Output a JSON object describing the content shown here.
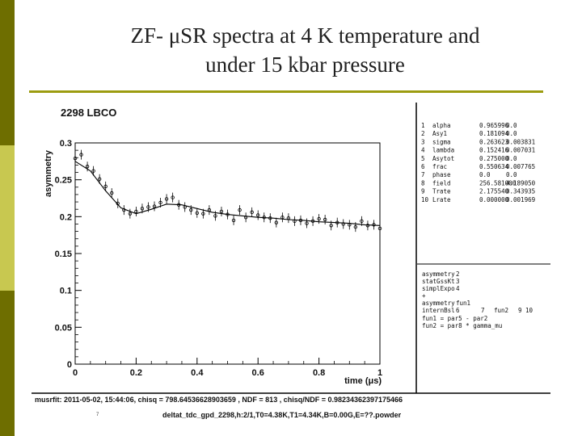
{
  "slide": {
    "title_line1": "ZF- μSR spectra at 4 K temperature and",
    "title_line2": "under 15 kbar pressure",
    "slide_number": "7",
    "colors": {
      "dark": "#6e6e00",
      "light": "#c8c850",
      "rule": "#9c9c10"
    }
  },
  "panel": {
    "run_title": "2298 LBCO",
    "params": [
      [
        "1",
        "alpha",
        "0.965996",
        "0.0"
      ],
      [
        "2",
        "Asy1",
        "0.181094",
        "0.0"
      ],
      [
        "3",
        "sigma",
        "0.263623",
        "0.003831"
      ],
      [
        "4",
        "lambda",
        "0.152416",
        "0.007031"
      ],
      [
        "5",
        "Asytot",
        "0.275000",
        "0.0"
      ],
      [
        "6",
        "frac",
        "0.550634",
        "0.007765"
      ],
      [
        "7",
        "phase",
        "0.0",
        "0.0"
      ],
      [
        "8",
        "field",
        "256.581000",
        "4.189050"
      ],
      [
        "9",
        "Trate",
        "2.175540",
        "0.343935"
      ],
      [
        "10",
        "Lrate",
        "0.000000",
        "0.001969"
      ]
    ],
    "theory": [
      [
        "asymmetry",
        "2",
        "",
        "",
        ""
      ],
      [
        "statGssKt",
        "3",
        "",
        "",
        ""
      ],
      [
        "simplExpo",
        "4",
        "",
        "",
        ""
      ],
      [
        "+",
        "",
        "",
        "",
        ""
      ],
      [
        "asymmetry",
        "fun1",
        "",
        "",
        ""
      ],
      [
        "internBsl",
        "6",
        "7",
        "fun2",
        "9     10"
      ]
    ],
    "functions": [
      "fun1 = par5 - par2",
      "fun2 = par8 * gamma_mu"
    ],
    "footer_line1": "musrfit: 2011-05-02, 15:44:06, chisq = 798.64536628903659 , NDF = 813 , chisq/NDF = 0.98234362397175466",
    "footer_line2": "deltat_tdc_gpd_2298,h:2/1,T0=4.38K,T1=4.34K,B=0.00G,E=??.powder"
  },
  "chart_data": {
    "type": "scatter",
    "title": "2298 LBCO",
    "xlabel": "time (μs)",
    "ylabel": "asymmetry",
    "xlim": [
      0,
      1.0
    ],
    "ylim": [
      0,
      0.3
    ],
    "x_ticks": [
      "0",
      "0.2",
      "0.4",
      "0.6",
      "0.8",
      "1"
    ],
    "y_ticks": [
      "0",
      "0.05",
      "0.1",
      "0.15",
      "0.2",
      "0.25",
      "0.3"
    ],
    "colors": {
      "data": "#000000",
      "fit": "#000000"
    },
    "series": [
      {
        "kind": "data",
        "x": [
          0.0,
          0.02,
          0.04,
          0.06,
          0.08,
          0.1,
          0.12,
          0.14,
          0.16,
          0.18,
          0.2,
          0.22,
          0.24,
          0.26,
          0.28,
          0.3,
          0.32,
          0.34,
          0.36,
          0.38,
          0.4,
          0.42,
          0.44,
          0.46,
          0.48,
          0.5,
          0.52,
          0.54,
          0.56,
          0.58,
          0.6,
          0.62,
          0.64,
          0.66,
          0.68,
          0.7,
          0.72,
          0.74,
          0.76,
          0.78,
          0.8,
          0.82,
          0.84,
          0.86,
          0.88,
          0.9,
          0.92,
          0.94,
          0.96,
          0.98,
          1.0
        ],
        "y": [
          0.279,
          0.284,
          0.268,
          0.262,
          0.251,
          0.241,
          0.232,
          0.218,
          0.209,
          0.204,
          0.207,
          0.211,
          0.213,
          0.214,
          0.219,
          0.224,
          0.226,
          0.216,
          0.213,
          0.209,
          0.205,
          0.204,
          0.209,
          0.201,
          0.207,
          0.203,
          0.195,
          0.209,
          0.199,
          0.206,
          0.202,
          0.199,
          0.198,
          0.192,
          0.199,
          0.198,
          0.194,
          0.195,
          0.191,
          0.194,
          0.197,
          0.196,
          0.188,
          0.192,
          0.19,
          0.189,
          0.186,
          0.194,
          0.188,
          0.189,
          0.184
        ]
      },
      {
        "kind": "fit",
        "x": [
          0.0,
          0.05,
          0.1,
          0.15,
          0.2,
          0.25,
          0.3,
          0.35,
          0.4,
          0.45,
          0.5,
          0.55,
          0.6,
          0.65,
          0.7,
          0.75,
          0.8,
          0.85,
          0.9,
          0.95,
          1.0
        ],
        "y": [
          0.275,
          0.262,
          0.235,
          0.212,
          0.204,
          0.21,
          0.217,
          0.216,
          0.211,
          0.206,
          0.203,
          0.201,
          0.199,
          0.198,
          0.196,
          0.195,
          0.193,
          0.192,
          0.191,
          0.189,
          0.188
        ]
      }
    ]
  }
}
